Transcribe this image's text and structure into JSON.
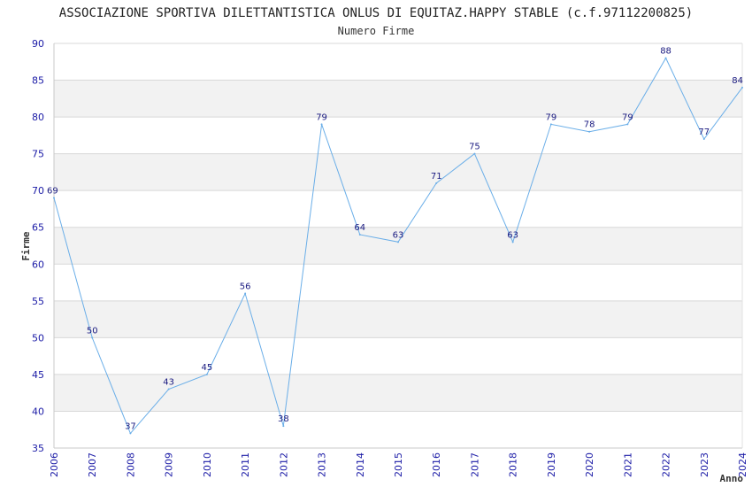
{
  "chart_data": {
    "type": "line",
    "title": "ASSOCIAZIONE SPORTIVA DILETTANTISTICA ONLUS DI EQUITAZ.HAPPY STABLE (c.f.97112200825)",
    "subtitle": "Numero Firme",
    "xlabel": "Anno",
    "ylabel": "Firme",
    "ylim": [
      35,
      90
    ],
    "yticks": [
      35,
      40,
      45,
      50,
      55,
      60,
      65,
      70,
      75,
      80,
      85,
      90
    ],
    "categories": [
      "2006",
      "2007",
      "2008",
      "2009",
      "2010",
      "2011",
      "2012",
      "2013",
      "2014",
      "2015",
      "2016",
      "2017",
      "2018",
      "2019",
      "2020",
      "2021",
      "2022",
      "2023",
      "2024"
    ],
    "series": [
      {
        "name": "Numero Firme",
        "values": [
          69,
          50,
          37,
          43,
          45,
          56,
          38,
          79,
          64,
          63,
          71,
          75,
          63,
          79,
          78,
          79,
          88,
          77,
          84
        ]
      }
    ],
    "colors": {
      "line": "#6aaee8",
      "band": "#f2f2f2",
      "grid": "#d8d8d8",
      "tick": "#1a1aa6"
    }
  }
}
